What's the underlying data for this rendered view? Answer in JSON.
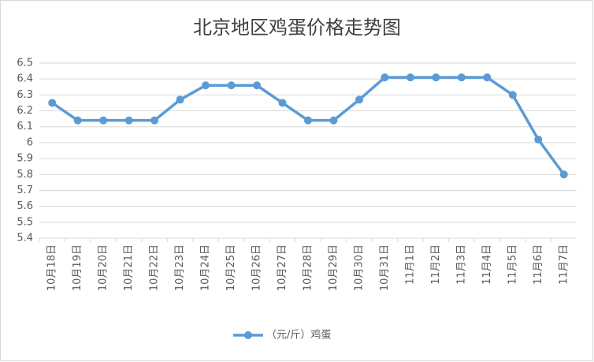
{
  "chart_data": {
    "type": "line",
    "title": "北京地区鸡蛋价格走势图",
    "categories": [
      "10月18日",
      "10月19日",
      "10月20日",
      "10月21日",
      "10月22日",
      "10月23日",
      "10月24日",
      "10月25日",
      "10月26日",
      "10月27日",
      "10月28日",
      "10月29日",
      "10月30日",
      "10月31日",
      "11月1日",
      "11月2日",
      "11月3日",
      "11月4日",
      "11月5日",
      "11月6日",
      "11月7日"
    ],
    "series": [
      {
        "name": "（元/斤）鸡蛋",
        "color": "#5b9bd5",
        "values": [
          6.25,
          6.14,
          6.14,
          6.14,
          6.14,
          6.27,
          6.36,
          6.36,
          6.36,
          6.25,
          6.14,
          6.14,
          6.27,
          6.41,
          6.41,
          6.41,
          6.41,
          6.41,
          6.3,
          6.02,
          5.8
        ]
      }
    ],
    "ylim": [
      5.4,
      6.5
    ],
    "yticks": [
      5.4,
      5.5,
      5.6,
      5.7,
      5.8,
      5.9,
      6,
      6.1,
      6.2,
      6.3,
      6.4,
      6.5
    ],
    "grid": true,
    "legend": "bottom"
  }
}
